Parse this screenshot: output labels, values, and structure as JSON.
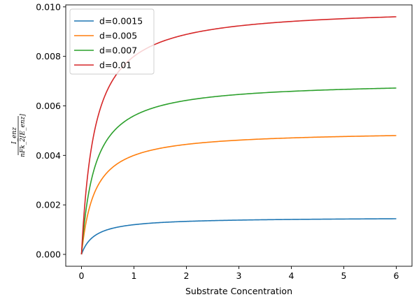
{
  "chart_data": {
    "type": "line",
    "xlabel": "Substrate Concentration",
    "ylabel": {
      "numerator": "I_enz",
      "denominator": "nFk_2[E_enz]"
    },
    "xlim": [
      -0.3,
      6.3
    ],
    "ylim": [
      -0.00048,
      0.01008
    ],
    "xticks": [
      "0",
      "1",
      "2",
      "3",
      "4",
      "5",
      "6"
    ],
    "yticks": [
      "0.000",
      "0.002",
      "0.004",
      "0.006",
      "0.008",
      "0.010"
    ],
    "legend_position": "upper-left",
    "curve_model": "y = d * x / (K + x)",
    "K": 0.25,
    "x_range": [
      0,
      6
    ],
    "series": [
      {
        "name": "d=0.0015",
        "d": 0.0015,
        "color": "#1f77b4"
      },
      {
        "name": "d=0.005",
        "d": 0.005,
        "color": "#ff7f0e"
      },
      {
        "name": "d=0.007",
        "d": 0.007,
        "color": "#2ca02c"
      },
      {
        "name": "d=0.01",
        "d": 0.01,
        "color": "#d62728"
      }
    ]
  }
}
